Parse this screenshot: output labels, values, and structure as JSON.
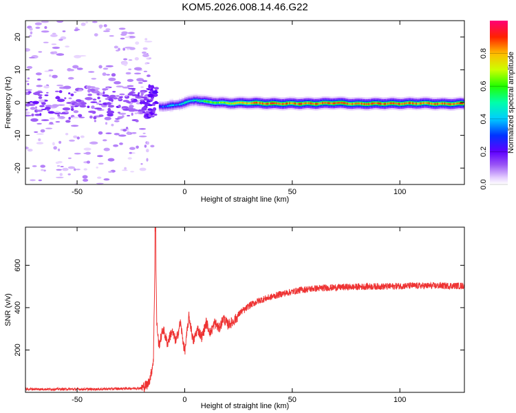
{
  "title": "KOM5.2026.008.14.46.G22",
  "colors": {
    "snr_line": "#ee3333",
    "frame": "#000000"
  },
  "chart_data": [
    {
      "type": "heatmap",
      "xlabel": "Height of straight line (km)",
      "ylabel": "Frequency (Hz)",
      "xlim": [
        -74,
        130
      ],
      "ylim": [
        -25,
        25
      ],
      "xticks": [
        -50,
        0,
        50,
        100
      ],
      "yticks": [
        -20,
        -10,
        0,
        10,
        20
      ],
      "xtick_labels": [
        "-50",
        "0",
        "50",
        "100"
      ],
      "ytick_labels": [
        "-20",
        "-10",
        "0",
        "10",
        "20"
      ],
      "colorbar": {
        "label": "Normalized spectral amplitude",
        "range": [
          0,
          1
        ],
        "ticks": [
          0.0,
          0.2,
          0.4,
          0.6,
          0.8
        ],
        "tick_labels": [
          "0.0",
          "0.2",
          "0.4",
          "0.6",
          "0.8"
        ],
        "colormap": "rainbow: white→violet→blue→cyan→green→yellow→orange→red→magenta"
      },
      "features": [
        {
          "name": "noise region",
          "x_range": [
            -74,
            -15
          ],
          "amplitude": "low (0.0–0.2)",
          "spread_hz": [
            -25,
            25
          ]
        },
        {
          "name": "signal onset",
          "x": -14,
          "amplitude": "0.1–0.3"
        },
        {
          "name": "carrier line",
          "x_range": [
            -12,
            130
          ],
          "freq_hz": [
            -0.5,
            0.5
          ],
          "amplitude": "0.6–0.95 rising with height"
        }
      ],
      "carrier_path": [
        [
          -12,
          -1.2
        ],
        [
          -5,
          -0.9
        ],
        [
          0,
          0.0
        ],
        [
          5,
          0.8
        ],
        [
          10,
          0.2
        ],
        [
          20,
          -0.2
        ],
        [
          30,
          -0.1
        ],
        [
          40,
          -0.3
        ],
        [
          50,
          -0.3
        ],
        [
          60,
          -0.3
        ],
        [
          70,
          -0.1
        ],
        [
          80,
          -0.4
        ],
        [
          90,
          -0.3
        ],
        [
          100,
          -0.3
        ],
        [
          110,
          -0.2
        ],
        [
          120,
          -0.4
        ],
        [
          130,
          -0.3
        ]
      ]
    },
    {
      "type": "line",
      "xlabel": "Height of straight line (km)",
      "ylabel": "SNR (v/v)",
      "xlim": [
        -74,
        130
      ],
      "ylim": [
        0,
        780
      ],
      "xticks": [
        -50,
        0,
        50,
        100
      ],
      "yticks": [
        200,
        400,
        600
      ],
      "xtick_labels": [
        "-50",
        "0",
        "50",
        "100"
      ],
      "ytick_labels": [
        "200",
        "400",
        "600"
      ],
      "series": [
        {
          "name": "SNR",
          "x": [
            -74,
            -60,
            -40,
            -20,
            -17,
            -15.5,
            -14.5,
            -13.6,
            -13,
            -12,
            -10,
            -8,
            -6,
            -4,
            -2,
            0,
            2,
            4,
            6,
            8,
            10,
            12,
            14,
            16,
            18,
            20,
            22,
            24,
            26,
            28,
            30,
            35,
            40,
            45,
            50,
            55,
            60,
            65,
            70,
            75,
            80,
            85,
            90,
            95,
            100,
            105,
            110,
            115,
            120,
            125,
            130
          ],
          "values": [
            15,
            15,
            15,
            20,
            40,
            90,
            160,
            780,
            330,
            220,
            300,
            230,
            290,
            240,
            330,
            190,
            360,
            240,
            300,
            260,
            330,
            280,
            330,
            300,
            350,
            320,
            330,
            350,
            380,
            390,
            410,
            435,
            450,
            465,
            475,
            485,
            490,
            493,
            495,
            497,
            498,
            500,
            500,
            500,
            502,
            503,
            503,
            503,
            503,
            503,
            503
          ]
        }
      ]
    }
  ]
}
